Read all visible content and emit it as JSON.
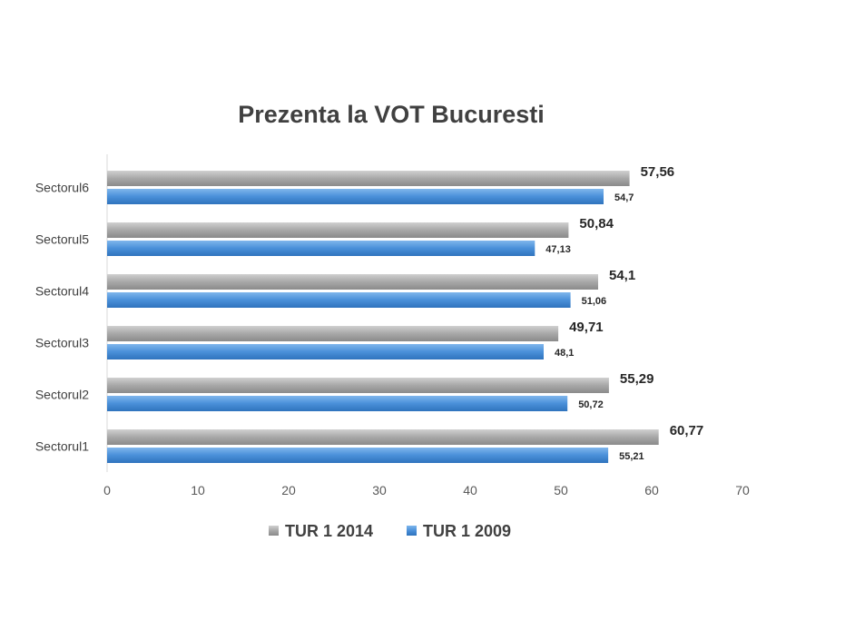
{
  "chart_data": {
    "type": "bar",
    "orientation": "horizontal",
    "title": "Prezenta la VOT Bucuresti",
    "categories": [
      "Sectorul1",
      "Sectorul2",
      "Sectorul3",
      "Sectorul4",
      "Sectorul5",
      "Sectorul6"
    ],
    "series": [
      {
        "name": "TUR 1 2014",
        "values": [
          60.77,
          55.29,
          49.71,
          54.1,
          50.84,
          57.56
        ],
        "labels": [
          "60,77",
          "55,29",
          "49,71",
          "54,1",
          "50,84",
          "57,56"
        ],
        "color": "#a6a6a6"
      },
      {
        "name": "TUR 1 2009",
        "values": [
          55.21,
          50.72,
          48.1,
          51.06,
          47.13,
          54.7
        ],
        "labels": [
          "55,21",
          "50,72",
          "48,1",
          "51,06",
          "47,13",
          "54,7"
        ],
        "color": "#4a90d9"
      }
    ],
    "xlim": [
      0,
      70
    ],
    "xticks": [
      "0",
      "10",
      "20",
      "30",
      "40",
      "50",
      "60",
      "70"
    ],
    "grid": false,
    "legend": "bottom"
  }
}
